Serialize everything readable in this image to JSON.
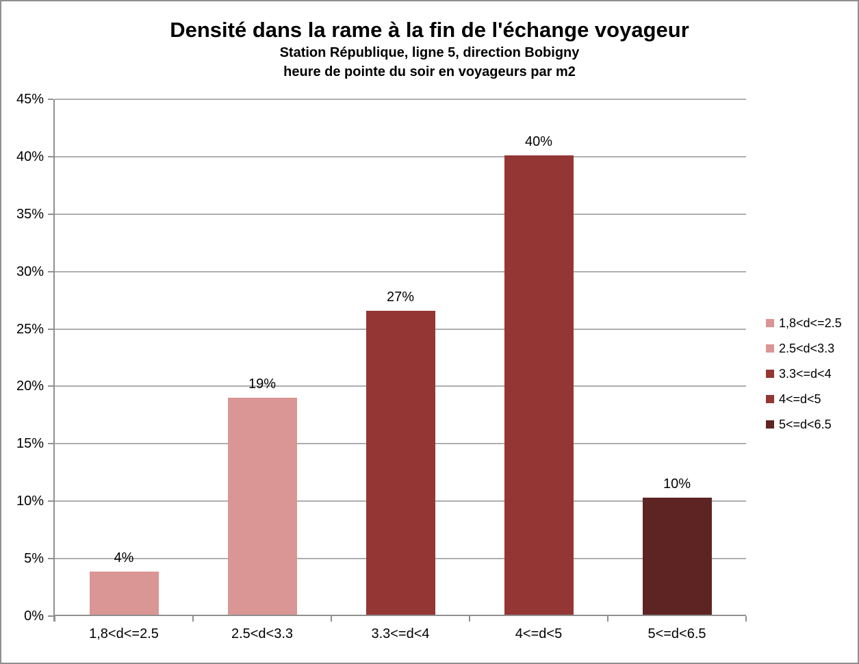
{
  "chart_data": {
    "type": "bar",
    "title": "Densité dans la rame à la fin de l'échange voyageur",
    "subtitle_line1": "Station République, ligne 5, direction Bobigny",
    "subtitle_line2": "heure de pointe du soir en voyageurs par m2",
    "categories": [
      "1,8<d<=2.5",
      "2.5<d<3.3",
      "3.3<=d<4",
      "4<=d<5",
      "5<=d<6.5"
    ],
    "values": [
      3.9,
      19.0,
      26.6,
      40.1,
      10.3
    ],
    "data_labels": [
      "4%",
      "19%",
      "27%",
      "40%",
      "10%"
    ],
    "bar_colors": [
      "#D99694",
      "#D99694",
      "#943634",
      "#943634",
      "#5E2423"
    ],
    "ylim": [
      0,
      45
    ],
    "ytick_step": 5,
    "ytick_labels": [
      "0%",
      "5%",
      "10%",
      "15%",
      "20%",
      "25%",
      "30%",
      "35%",
      "40%",
      "45%"
    ],
    "grid": true,
    "gridline_color": "#aeaeae",
    "axis_color": "#8f8f8f",
    "xlabel": "",
    "ylabel": "",
    "legend": {
      "position": "right",
      "entries": [
        {
          "label": "1,8<d<=2.5",
          "color": "#D99694"
        },
        {
          "label": "2.5<d<3.3",
          "color": "#D99694"
        },
        {
          "label": "3.3<=d<4",
          "color": "#943634"
        },
        {
          "label": "4<=d<5",
          "color": "#943634"
        },
        {
          "label": "5<=d<6.5",
          "color": "#5E2423"
        }
      ]
    }
  }
}
